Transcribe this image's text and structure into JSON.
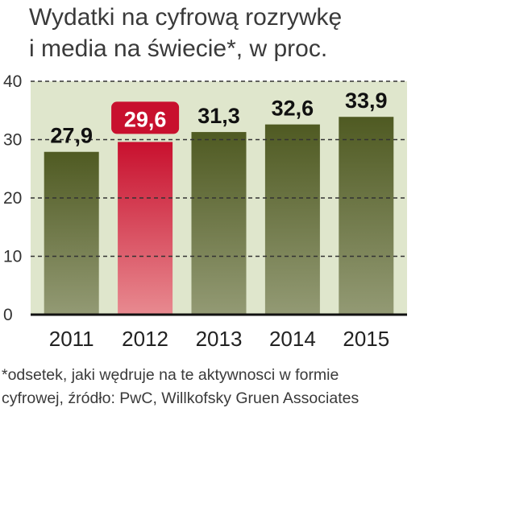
{
  "title_lines": [
    "Wydatki na cyfrową rozrywkę",
    "i media na świecie*, w proc."
  ],
  "footnote_lines": [
    "*odsetek, jaki wędruje na te aktywnosci w formie",
    "cyfrowej, źródło: PwC, Willkofsky Gruen Associates"
  ],
  "colors": {
    "bar_top": "#4f5a22",
    "bar_bottom": "#939a74",
    "highlight_top": "#c8102e",
    "highlight_bottom": "#e88a90",
    "plot_bg": "#dfe6cc",
    "grid": "#333333"
  },
  "chart_data": {
    "type": "bar",
    "categories": [
      "2011",
      "2012",
      "2013",
      "2014",
      "2015"
    ],
    "values": [
      27.9,
      29.6,
      31.3,
      32.6,
      33.9
    ],
    "value_labels": [
      "27,9",
      "29,6",
      "31,3",
      "32,6",
      "33,9"
    ],
    "highlight_index": 1,
    "ylim": [
      0,
      40
    ],
    "yticks": [
      "0",
      "10",
      "20",
      "30",
      "40"
    ],
    "grid": true,
    "title": "Wydatki na cyfrową rozrywkę i media na świecie*, w proc."
  }
}
